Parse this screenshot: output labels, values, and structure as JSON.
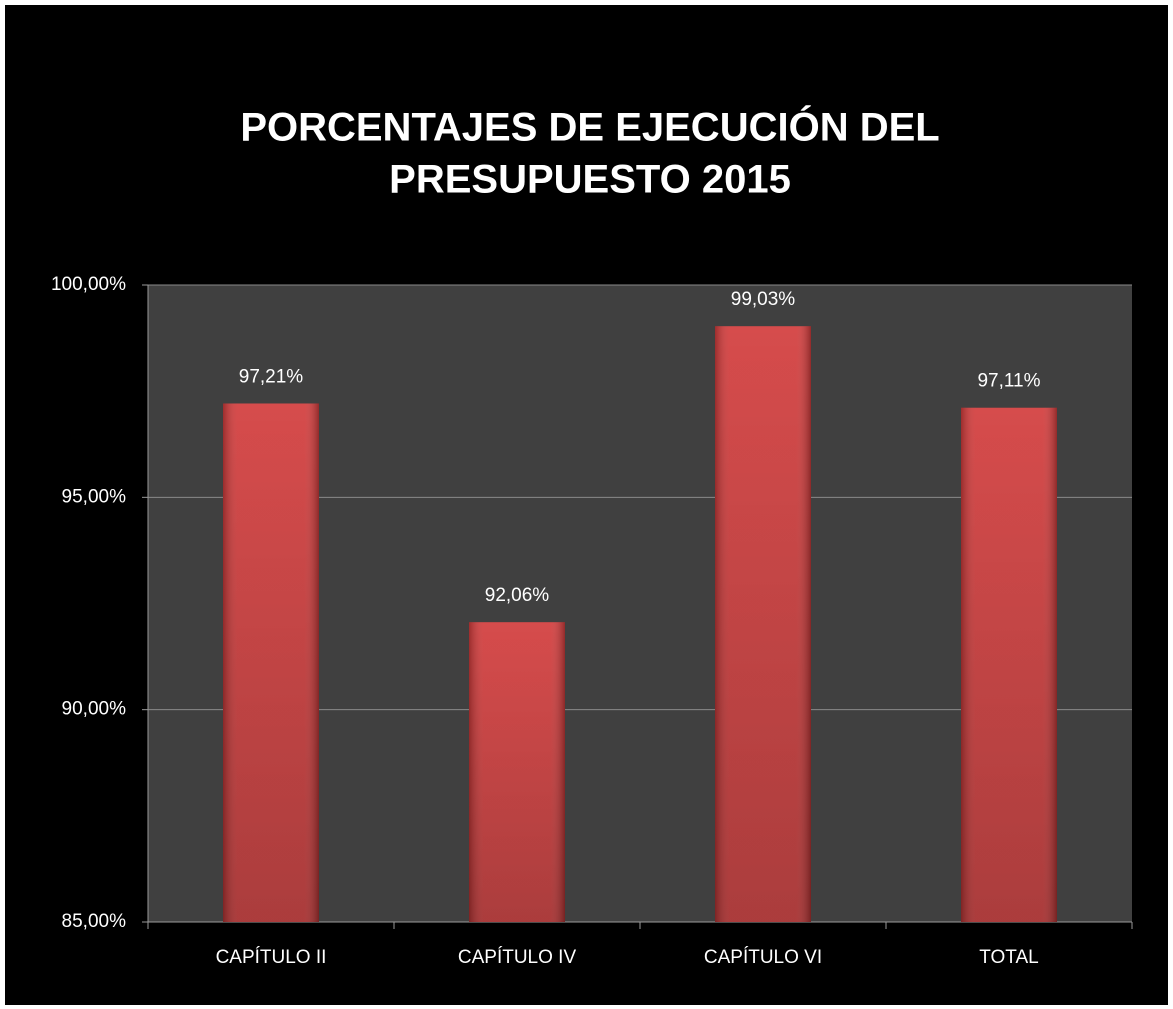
{
  "chart_data": {
    "type": "bar",
    "title": [
      "PORCENTAJES DE EJECUCIÓN DEL",
      "PRESUPUESTO 2015"
    ],
    "categories": [
      "CAPÍTULO II",
      "CAPÍTULO IV",
      "CAPÍTULO VI",
      "TOTAL"
    ],
    "values": [
      97.21,
      92.06,
      99.03,
      97.11
    ],
    "value_labels": [
      "97,21%",
      "92,06%",
      "99,03%",
      "97,11%"
    ],
    "color": "#d23c3c",
    "ylim": [
      85,
      100
    ],
    "yticks": [
      {
        "value": 85,
        "label": "85,00%"
      },
      {
        "value": 90,
        "label": "90,00%"
      },
      {
        "value": 95,
        "label": "95,00%"
      },
      {
        "value": 100,
        "label": "100,00%"
      }
    ],
    "grid": true
  }
}
